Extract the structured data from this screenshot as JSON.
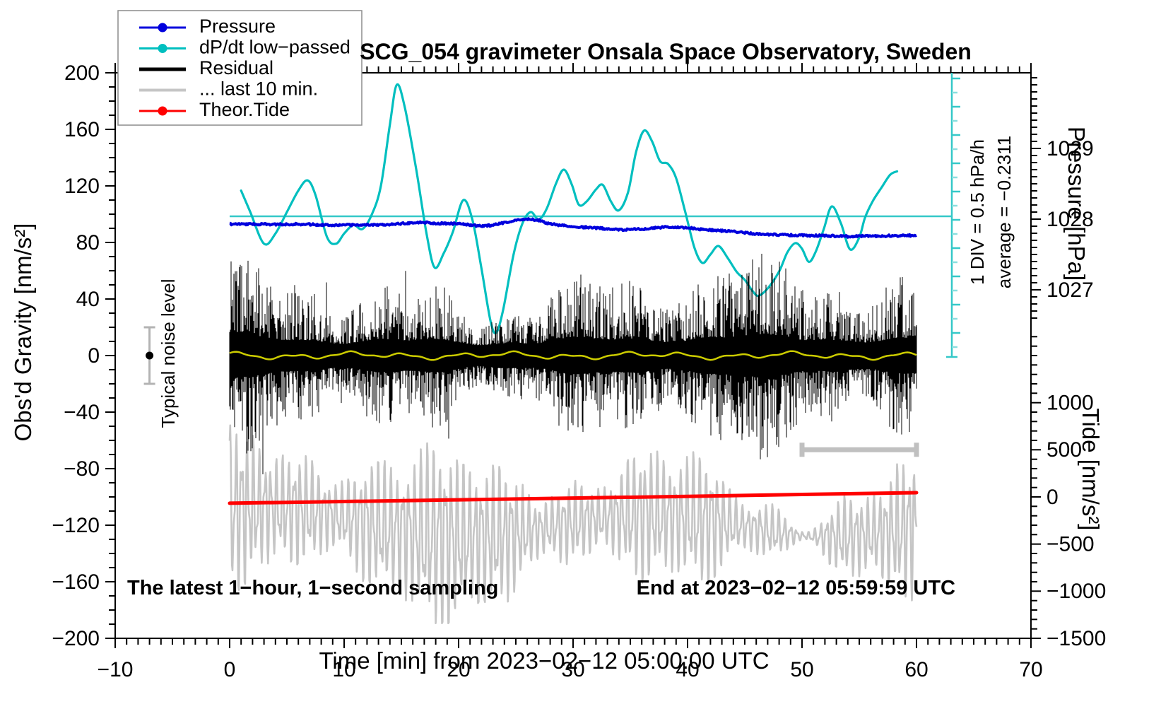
{
  "header": {
    "title": "SCG_054 gravimeter Onsala Space Observatory, Sweden"
  },
  "legend": {
    "entries": [
      {
        "label": "Pressure",
        "color": "#0000dd",
        "marker": "line-dot",
        "line_width": 3
      },
      {
        "label": "dP/dt low−passed",
        "color": "#00bfbf",
        "marker": "line-dot",
        "line_width": 3
      },
      {
        "label": "Residual",
        "color": "#000000",
        "marker": "line",
        "line_width": 5
      },
      {
        "label": "... last 10 min.",
        "color": "#c5c5c5",
        "marker": "line",
        "line_width": 4
      },
      {
        "label": "Theor.Tide",
        "color": "#ff0000",
        "marker": "line-dot",
        "line_width": 3
      }
    ]
  },
  "axes": {
    "x": {
      "title": "Time [min] from 2023−02−12 05:00:00 UTC",
      "min": -10,
      "max": 70,
      "major_ticks": [
        -10,
        0,
        10,
        20,
        30,
        40,
        50,
        60,
        70
      ],
      "minor_step": 1
    },
    "y_left": {
      "title": "Obs'd Gravity [nm/s²]",
      "min": -200,
      "max": 200,
      "major_ticks": [
        200,
        160,
        120,
        80,
        40,
        0,
        -40,
        -80,
        -120,
        -160,
        -200
      ],
      "minor_step": 10
    },
    "y_right_pressure": {
      "title": "Pressure [hPa]",
      "major_ticks": [
        1029,
        1028,
        1027
      ],
      "minor_step": 0.1
    },
    "y_right_tide": {
      "title": "Tide [nm/s²]",
      "major_ticks": [
        1000,
        500,
        0,
        -500,
        -1000,
        -1500
      ],
      "minor_step": 100
    }
  },
  "annotations": {
    "div_scale": "1 DIV = 0.5 hPa/h",
    "average": "average = −0.2311",
    "noise_label": "Typical noise level",
    "note_left": "The latest 1−hour, 1−second sampling",
    "note_right": "End at 2023−02−12 05:59:59 UTC"
  },
  "chart_data": {
    "type": "line",
    "title": "SCG_054 gravimeter Onsala Space Observatory, Sweden",
    "xlabel": "Time [min] from 2023−02−12 05:00:00 UTC",
    "x_range": [
      -10,
      70
    ],
    "data_span_min": [
      0,
      60
    ],
    "gravity_axis_range": [
      -200,
      200
    ],
    "tide_axis_ticks": [
      1000,
      500,
      0,
      -500,
      -1000,
      -1500
    ],
    "pressure_axis_ticks": [
      1029,
      1028,
      1027
    ],
    "grid": "off",
    "legend_position": "top-left",
    "series": {
      "pressure": {
        "name": "Pressure",
        "color": "#0000dd",
        "units": "hPa",
        "points": [
          [
            0,
            1027.93
          ],
          [
            2,
            1027.93
          ],
          [
            4,
            1027.925
          ],
          [
            6,
            1027.93
          ],
          [
            8,
            1027.92
          ],
          [
            10,
            1027.915
          ],
          [
            12,
            1027.92
          ],
          [
            14,
            1027.925
          ],
          [
            16,
            1027.95
          ],
          [
            17,
            1027.955
          ],
          [
            18,
            1027.94
          ],
          [
            20,
            1027.935
          ],
          [
            22,
            1027.9
          ],
          [
            23,
            1027.915
          ],
          [
            24,
            1027.95
          ],
          [
            25,
            1027.985
          ],
          [
            26,
            1028.0
          ],
          [
            27,
            1027.985
          ],
          [
            28,
            1027.93
          ],
          [
            30,
            1027.895
          ],
          [
            32,
            1027.875
          ],
          [
            34,
            1027.85
          ],
          [
            35,
            1027.85
          ],
          [
            36,
            1027.86
          ],
          [
            37,
            1027.875
          ],
          [
            38,
            1027.885
          ],
          [
            39,
            1027.89
          ],
          [
            40,
            1027.88
          ],
          [
            41,
            1027.86
          ],
          [
            42,
            1027.845
          ],
          [
            44,
            1027.825
          ],
          [
            46,
            1027.79
          ],
          [
            48,
            1027.78
          ],
          [
            50,
            1027.77
          ],
          [
            52,
            1027.765
          ],
          [
            54,
            1027.755
          ],
          [
            56,
            1027.76
          ],
          [
            58,
            1027.765
          ],
          [
            60,
            1027.77
          ]
        ]
      },
      "dpdt_lowpassed": {
        "name": "dP/dt low−passed",
        "color": "#00bfbf",
        "units": "hPa/h",
        "average": -0.2311,
        "scale_note": "1 DIV = 0.5 hPa/h",
        "reference_level_on_gravity_axis": 100,
        "points": [
          [
            1,
            0.48
          ],
          [
            1.8,
            0.1
          ],
          [
            3,
            -0.46
          ],
          [
            4,
            -0.28
          ],
          [
            5,
            0.1
          ],
          [
            6,
            0.48
          ],
          [
            6.8,
            0.66
          ],
          [
            7.5,
            0.4
          ],
          [
            8.5,
            -0.34
          ],
          [
            9.3,
            -0.46
          ],
          [
            10,
            -0.28
          ],
          [
            10.8,
            -0.13
          ],
          [
            11.6,
            -0.2
          ],
          [
            12.4,
            0.05
          ],
          [
            13.2,
            0.55
          ],
          [
            14,
            1.65
          ],
          [
            14.6,
            2.35
          ],
          [
            15.3,
            1.95
          ],
          [
            16.3,
            0.85
          ],
          [
            17.2,
            -0.28
          ],
          [
            17.9,
            -0.88
          ],
          [
            18.7,
            -0.63
          ],
          [
            19.5,
            -0.25
          ],
          [
            20.4,
            0.31
          ],
          [
            21.2,
            -0.03
          ],
          [
            22,
            -0.9
          ],
          [
            22.8,
            -1.84
          ],
          [
            23.3,
            -2.03
          ],
          [
            23.9,
            -1.62
          ],
          [
            24.8,
            -0.65
          ],
          [
            25.6,
            -0.09
          ],
          [
            26.3,
            0.1
          ],
          [
            27,
            -0.03
          ],
          [
            27.7,
            0.16
          ],
          [
            28.5,
            0.6
          ],
          [
            29.2,
            0.85
          ],
          [
            29.9,
            0.58
          ],
          [
            30.5,
            0.23
          ],
          [
            31.2,
            0.29
          ],
          [
            32,
            0.5
          ],
          [
            32.6,
            0.58
          ],
          [
            33.3,
            0.29
          ],
          [
            34,
            0.13
          ],
          [
            34.8,
            0.45
          ],
          [
            35.5,
            1.16
          ],
          [
            36.2,
            1.54
          ],
          [
            36.9,
            1.35
          ],
          [
            37.6,
            1.0
          ],
          [
            38.3,
            0.95
          ],
          [
            39,
            0.7
          ],
          [
            39.8,
            0.1
          ],
          [
            40.6,
            -0.53
          ],
          [
            41.3,
            -0.8
          ],
          [
            42,
            -0.65
          ],
          [
            42.7,
            -0.5
          ],
          [
            43.5,
            -0.71
          ],
          [
            44.3,
            -0.96
          ],
          [
            45,
            -1.1
          ],
          [
            45.7,
            -1.3
          ],
          [
            46.2,
            -1.38
          ],
          [
            47,
            -1.25
          ],
          [
            48,
            -0.95
          ],
          [
            48.7,
            -0.62
          ],
          [
            49.4,
            -0.45
          ],
          [
            50,
            -0.55
          ],
          [
            50.6,
            -0.78
          ],
          [
            51.2,
            -0.6
          ],
          [
            51.9,
            -0.2
          ],
          [
            52.6,
            0.2
          ],
          [
            53.4,
            -0.1
          ],
          [
            54.2,
            -0.56
          ],
          [
            55,
            -0.35
          ],
          [
            55.5,
            0.0
          ],
          [
            56.2,
            0.3
          ],
          [
            57,
            0.55
          ],
          [
            57.7,
            0.76
          ],
          [
            58.3,
            0.82
          ]
        ]
      },
      "residual": {
        "name": "Residual",
        "color": "#000000",
        "units": "nm/s²",
        "sampling": "1 s",
        "mean": 0,
        "typical_band": 25,
        "max_spike": 85,
        "seed": 54
      },
      "residual_smoothed": {
        "color": "#cccc00",
        "mean": 0,
        "amplitude": 2.5
      },
      "last_10_min": {
        "name": "... last 10 min.",
        "color": "#c5c5c5",
        "axis": "tide",
        "center": -240,
        "amplitude_range": [
          300,
          1000
        ],
        "period_min": 0.52,
        "seed": 99,
        "marker_bar": {
          "from_min": 50,
          "to_min": 60,
          "tide_level": 500
        }
      },
      "theor_tide": {
        "name": "Theor.Tide",
        "color": "#ff0000",
        "units": "nm/s²",
        "points": [
          [
            0,
            -67
          ],
          [
            10,
            -49
          ],
          [
            20,
            -31
          ],
          [
            30,
            -12
          ],
          [
            40,
            6
          ],
          [
            50,
            26
          ],
          [
            60,
            45
          ]
        ]
      }
    },
    "noise_marker": {
      "label": "Typical noise level",
      "time_min": -7,
      "value": 0,
      "half_range": 20
    },
    "dpdt_scale_bar": {
      "div_value_hpa_per_h": 0.5,
      "ticks_from": 2.5,
      "ticks_to": -2.0,
      "tick_step": 0.5
    }
  }
}
